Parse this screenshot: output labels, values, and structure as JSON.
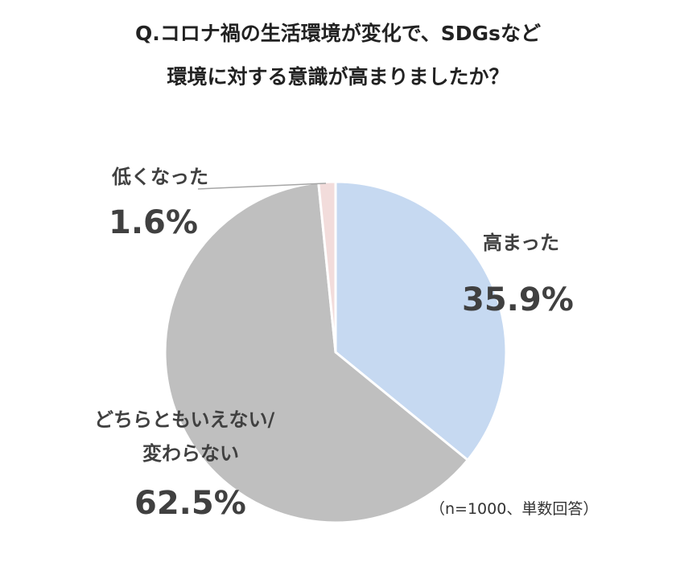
{
  "title": {
    "line1": "Q.コロナ禍の生活環境が変化で、SDGsなど",
    "line2": "環境に対する意識が高まりましたか？"
  },
  "note": "（n=1000、単数回答）",
  "colors": {
    "increased": "#c6d9f1",
    "neutral": "#bfbfbf",
    "decreased": "#f2dcdb",
    "label": "#404040",
    "leader": "#a6a6a6"
  },
  "chart_data": {
    "type": "pie",
    "unit": "%",
    "slices": [
      {
        "key": "increased",
        "label_lines": [
          "高まった"
        ],
        "value": 35.9,
        "display": "35.9%"
      },
      {
        "key": "neutral",
        "label_lines": [
          "どちらともいえない/",
          "変わらない"
        ],
        "value": 62.5,
        "display": "62.5%"
      },
      {
        "key": "decreased",
        "label_lines": [
          "低くなった"
        ],
        "value": 1.6,
        "display": "1.6%"
      }
    ],
    "start_angle": "12 o'clock",
    "direction": "clockwise",
    "legend": "none"
  }
}
